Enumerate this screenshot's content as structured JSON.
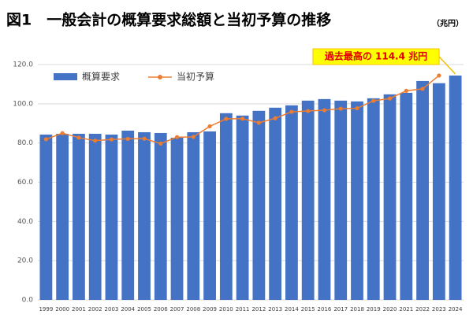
{
  "chart_data": {
    "type": "bar-line",
    "title": "図1　一般会計の概算要求総額と当初予算の推移",
    "unit": "（兆円）",
    "annotation": "過去最高の 114.4 兆円",
    "categories": [
      "1999",
      "2000",
      "2001",
      "2002",
      "2003",
      "2004",
      "2005",
      "2006",
      "2007",
      "2008",
      "2009",
      "2010",
      "2011",
      "2012",
      "2013",
      "2014",
      "2015",
      "2016",
      "2017",
      "2018",
      "2019",
      "2020",
      "2021",
      "2022",
      "2023",
      "2024"
    ],
    "series": [
      {
        "name": "概算要求",
        "kind": "bar",
        "color": "#4472c4",
        "values": [
          84.3,
          84.7,
          84.7,
          84.7,
          84.3,
          86.3,
          85.5,
          85.1,
          82.7,
          85.5,
          85.9,
          95.2,
          94.0,
          96.4,
          98.0,
          99.2,
          101.6,
          102.4,
          101.6,
          101.2,
          102.8,
          104.8,
          105.6,
          111.6,
          110.5,
          114.4
        ]
      },
      {
        "name": "当初予算",
        "kind": "line",
        "color": "#ed7d31",
        "values": [
          81.9,
          85.0,
          82.7,
          81.2,
          81.8,
          82.1,
          82.2,
          79.7,
          83.0,
          83.1,
          88.5,
          92.3,
          92.4,
          90.3,
          92.6,
          95.9,
          96.3,
          96.7,
          97.5,
          97.7,
          101.5,
          102.7,
          106.6,
          107.6,
          114.4,
          null
        ]
      }
    ],
    "ylim": [
      0,
      120
    ],
    "yticks": [
      {
        "value": 0,
        "label": "0.0"
      },
      {
        "value": 20,
        "label": "20.0"
      },
      {
        "value": 40,
        "label": "40.0"
      },
      {
        "value": 60,
        "label": "60.0"
      },
      {
        "value": 80,
        "label": "80.0"
      },
      {
        "value": 100,
        "label": "100.0"
      },
      {
        "value": 120,
        "label": "120.0"
      }
    ],
    "grid": true
  }
}
